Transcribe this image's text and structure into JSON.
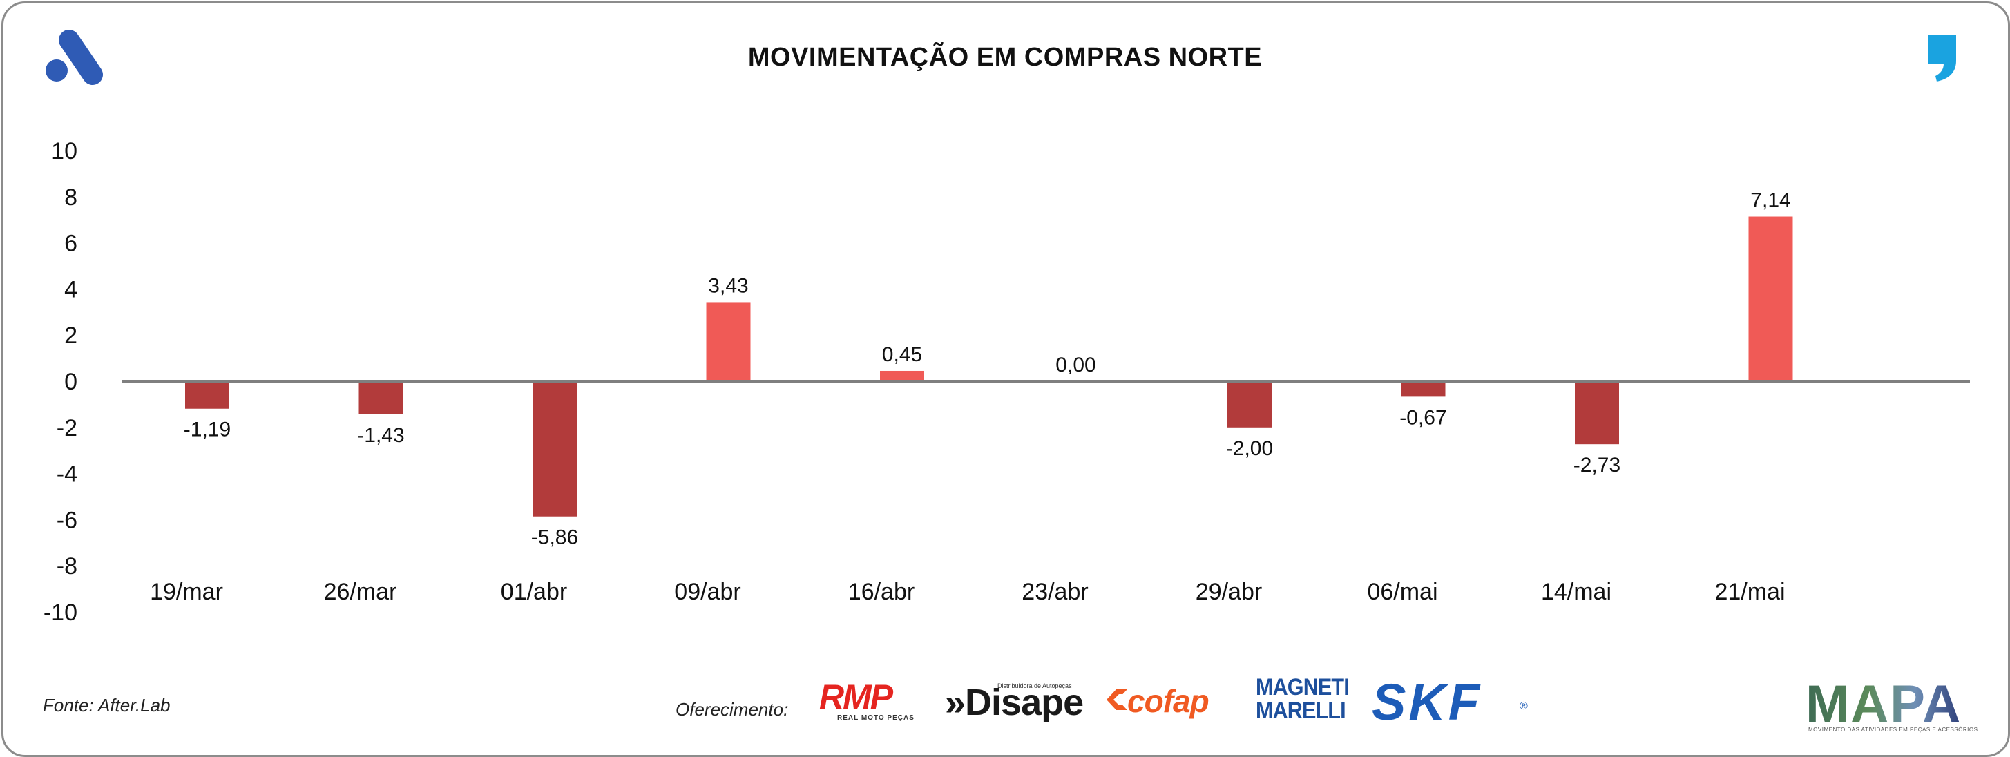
{
  "header": {
    "title": "MOVIMENTAÇÃO EM COMPRAS NORTE",
    "brand_icon": "after-lab-logo-icon",
    "quote_icon": "quote-mark-icon"
  },
  "chart_data": {
    "type": "bar",
    "title": "MOVIMENTAÇÃO EM COMPRAS NORTE",
    "xlabel": "",
    "ylabel": "",
    "ylim": [
      -10,
      10
    ],
    "yticks": [
      10,
      8,
      6,
      4,
      2,
      0,
      -2,
      -4,
      -6,
      -8,
      -10
    ],
    "grid": false,
    "categories": [
      "19/mar",
      "26/mar",
      "01/abr",
      "09/abr",
      "16/abr",
      "23/abr",
      "29/abr",
      "06/mai",
      "14/mai",
      "21/mai"
    ],
    "values": [
      -1.19,
      -1.43,
      -5.86,
      3.43,
      0.45,
      0.0,
      -2.0,
      -0.67,
      -2.73,
      7.14
    ],
    "data_labels": [
      "-1,19",
      "-1,43",
      "-5,86",
      "3,43",
      "0,45",
      "0,00",
      "-2,00",
      "-0,67",
      "-2,73",
      "7,14"
    ],
    "colors": {
      "positive": "#f05a56",
      "negative": "#b23b3b",
      "axis": "#7f7f7f"
    }
  },
  "footer": {
    "source": "Fonte: After.Lab",
    "sponsor_label": "Oferecimento:",
    "sponsors": {
      "rmp": {
        "name": "RMP",
        "tagline": "REAL MOTO PEÇAS"
      },
      "disape": {
        "name": "»Disape",
        "tagline": "Distribuidora de Autopeças"
      },
      "cofap": {
        "name": "cofap"
      },
      "magneti": {
        "line1": "MAGNETI",
        "line2": "MARELLI"
      },
      "skf": {
        "name": "SKF",
        "reg": "®"
      },
      "mapa": {
        "name": "MAPA",
        "tagline": "MOVIMENTO DAS ATIVIDADES EM PEÇAS E ACESSÓRIOS"
      }
    }
  }
}
